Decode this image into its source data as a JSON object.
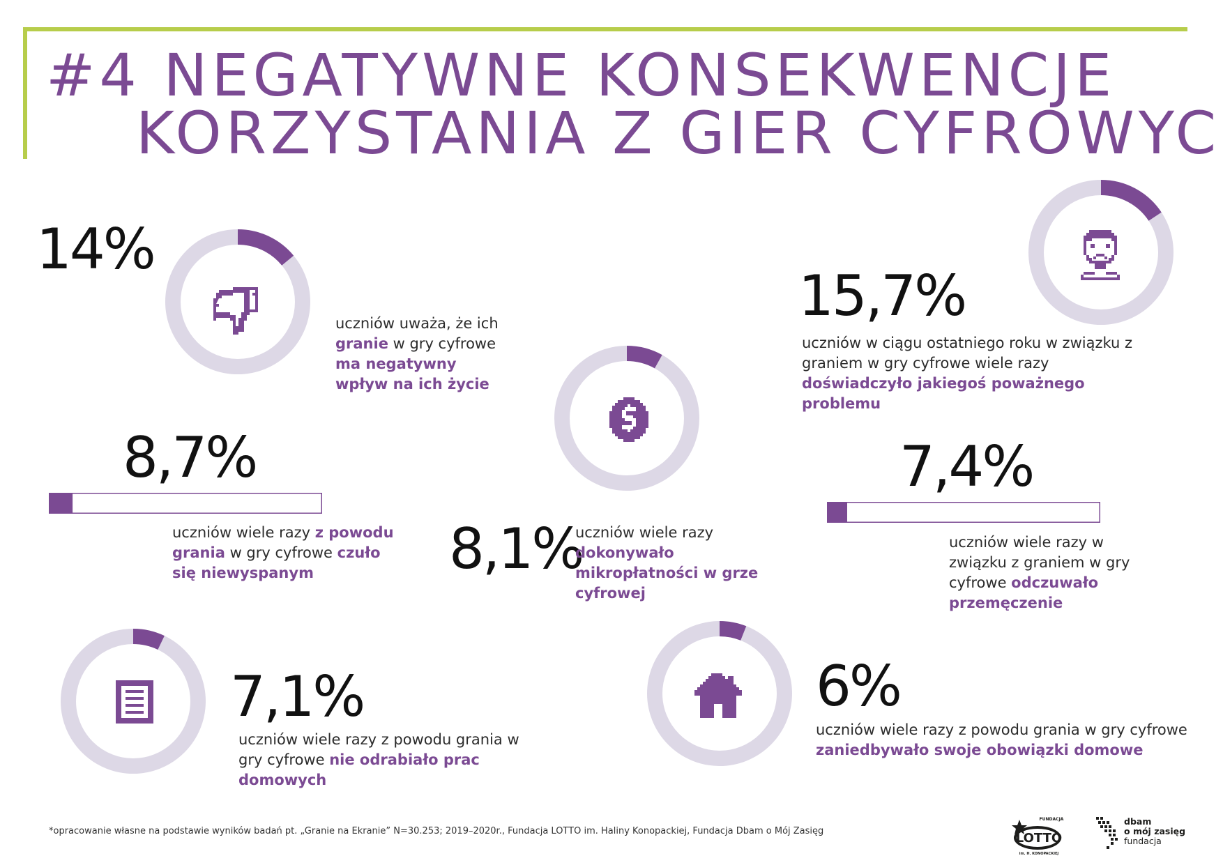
{
  "header": {
    "title_line1": "#4 NEGATYWNE KONSEKWENCJE",
    "title_line2": "KORZYSTANIA Z GIER CYFROWYCH"
  },
  "colors": {
    "accent": "#7b4a93",
    "ring_track": "#ddd8e6",
    "frame": "#b7cd4b"
  },
  "chart_data": {
    "type": "infographic",
    "unit": "%",
    "items": [
      {
        "id": "negative-impact",
        "display": "14%",
        "value": 14,
        "shape": "donut",
        "icon": "thumbs-down-icon",
        "text": [
          {
            "t": "uczniów uważa, że ich ",
            "b": false
          },
          {
            "t": "granie",
            "b": true
          },
          {
            "t": " w gry cyfrowe ",
            "b": false
          },
          {
            "t": "ma negatywny wpływ na ich życie",
            "b": true
          }
        ]
      },
      {
        "id": "serious-problem",
        "display": "15,7%",
        "value": 15.7,
        "shape": "donut",
        "icon": "sad-face-icon",
        "text": [
          {
            "t": "uczniów w ciągu ostatniego roku w związku z graniem w gry cyfrowe wiele razy ",
            "b": false
          },
          {
            "t": "doświadczyło jakiegoś poważnego problemu",
            "b": true
          }
        ]
      },
      {
        "id": "sleepy",
        "display": "8,7%",
        "value": 8.7,
        "shape": "bar",
        "text": [
          {
            "t": "uczniów wiele razy ",
            "b": false
          },
          {
            "t": "z powodu grania",
            "b": true
          },
          {
            "t": " w gry cyfrowe ",
            "b": false
          },
          {
            "t": "czuło się niewyspanym",
            "b": true
          }
        ]
      },
      {
        "id": "micropayments",
        "display": "8,1%",
        "value": 8.1,
        "shape": "donut",
        "icon": "dollar-coin-icon",
        "text": [
          {
            "t": "uczniów wiele razy ",
            "b": false
          },
          {
            "t": "dokonywało mikropłatności w grze cyfrowej",
            "b": true
          }
        ]
      },
      {
        "id": "fatigue",
        "display": "7,4%",
        "value": 7.4,
        "shape": "bar",
        "text": [
          {
            "t": "uczniów wiele razy w związku z graniem w gry cyfrowe ",
            "b": false
          },
          {
            "t": "odczuwało przemęczenie",
            "b": true
          }
        ]
      },
      {
        "id": "homework",
        "display": "7,1%",
        "value": 7.1,
        "shape": "donut",
        "icon": "document-icon",
        "text": [
          {
            "t": "uczniów wiele razy z powodu grania w gry cyfrowe ",
            "b": false
          },
          {
            "t": "nie odrabiało prac domowych",
            "b": true
          }
        ]
      },
      {
        "id": "home-duties",
        "display": "6%",
        "value": 6,
        "shape": "donut",
        "icon": "house-icon",
        "text": [
          {
            "t": "uczniów wiele razy z powodu grania w gry cyfrowe ",
            "b": false
          },
          {
            "t": "zaniedbywało swoje obowiązki domowe",
            "b": true
          }
        ]
      }
    ]
  },
  "footer": {
    "note": "*opracowanie własne na podstawie wyników badań pt. „Granie na Ekranie” N=30.253; 2019–2020r., Fundacja LOTTO im. Haliny Konopackiej, Fundacja Dbam o Mój Zasięg",
    "logo_lotto": {
      "top": "FUNDACJA",
      "main": "LOTTO",
      "bottom": "im. H. KONOPACKIEJ"
    },
    "logo_dbam": {
      "line1": "dbam",
      "line2": "o mój zasięg",
      "line3": "fundacja"
    }
  }
}
